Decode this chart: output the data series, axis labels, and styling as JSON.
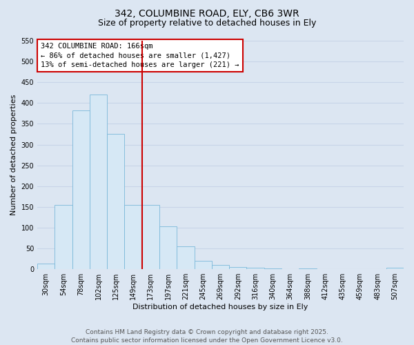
{
  "title_line1": "342, COLUMBINE ROAD, ELY, CB6 3WR",
  "title_line2": "Size of property relative to detached houses in Ely",
  "xlabel": "Distribution of detached houses by size in Ely",
  "ylabel": "Number of detached properties",
  "categories": [
    "30sqm",
    "54sqm",
    "78sqm",
    "102sqm",
    "125sqm",
    "149sqm",
    "173sqm",
    "197sqm",
    "221sqm",
    "245sqm",
    "269sqm",
    "292sqm",
    "316sqm",
    "340sqm",
    "364sqm",
    "388sqm",
    "412sqm",
    "435sqm",
    "459sqm",
    "483sqm",
    "507sqm"
  ],
  "values": [
    14,
    155,
    383,
    420,
    325,
    155,
    155,
    103,
    55,
    20,
    10,
    5,
    3,
    2,
    1,
    2,
    1,
    0,
    1,
    0,
    3
  ],
  "bar_color": "#d6e8f5",
  "bar_edge_color": "#7ab8d9",
  "bar_width": 1.0,
  "vline_x_index": 6,
  "vline_color": "#cc0000",
  "ylim": [
    0,
    550
  ],
  "yticks": [
    0,
    50,
    100,
    150,
    200,
    250,
    300,
    350,
    400,
    450,
    500,
    550
  ],
  "annotation_box_text": "342 COLUMBINE ROAD: 166sqm\n← 86% of detached houses are smaller (1,427)\n13% of semi-detached houses are larger (221) →",
  "annotation_box_color": "#ffffff",
  "annotation_box_edgecolor": "#cc0000",
  "bg_color": "#dce6f2",
  "grid_color": "#c8d4e8",
  "footer_text": "Contains HM Land Registry data © Crown copyright and database right 2025.\nContains public sector information licensed under the Open Government Licence v3.0.",
  "title_fontsize": 10,
  "subtitle_fontsize": 9,
  "axis_label_fontsize": 8,
  "tick_fontsize": 7,
  "annotation_fontsize": 7.5,
  "footer_fontsize": 6.5
}
